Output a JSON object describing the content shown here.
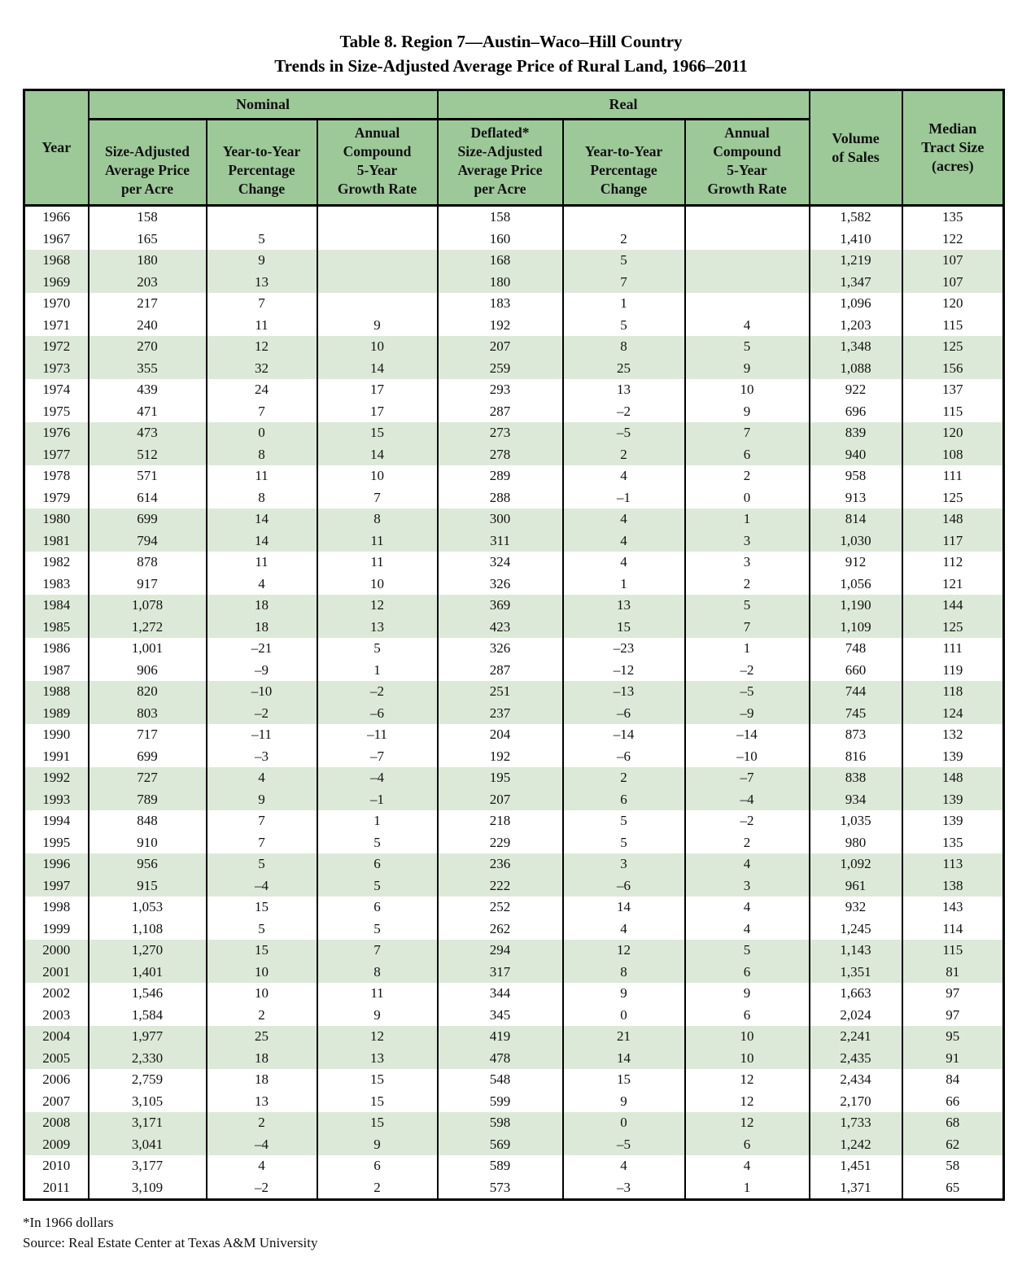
{
  "title": {
    "line1": "Table 8. Region 7—Austin–Waco–Hill Country",
    "line2": "Trends in Size-Adjusted Average Price of Rural Land, 1966–2011"
  },
  "table": {
    "group_headers": [
      {
        "label": "Nominal"
      },
      {
        "label": "Real"
      }
    ],
    "columns": [
      {
        "label": "Year"
      },
      {
        "label": "Size-Adjusted\nAverage Price\nper Acre"
      },
      {
        "label": "Year-to-Year\nPercentage\nChange"
      },
      {
        "label": "Annual\nCompound\n5-Year\nGrowth Rate"
      },
      {
        "label": "Deflated*\nSize-Adjusted\nAverage Price\nper Acre"
      },
      {
        "label": "Year-to-Year\nPercentage\nChange"
      },
      {
        "label": "Annual\nCompound\n5-Year\nGrowth Rate"
      },
      {
        "label": "Volume\nof Sales"
      },
      {
        "label": "Median\nTract Size\n(acres)"
      }
    ],
    "rows": [
      [
        "1966",
        "158",
        "",
        "",
        "158",
        "",
        "",
        "1,582",
        "135"
      ],
      [
        "1967",
        "165",
        "5",
        "",
        "160",
        "2",
        "",
        "1,410",
        "122"
      ],
      [
        "1968",
        "180",
        "9",
        "",
        "168",
        "5",
        "",
        "1,219",
        "107"
      ],
      [
        "1969",
        "203",
        "13",
        "",
        "180",
        "7",
        "",
        "1,347",
        "107"
      ],
      [
        "1970",
        "217",
        "7",
        "",
        "183",
        "1",
        "",
        "1,096",
        "120"
      ],
      [
        "1971",
        "240",
        "11",
        "9",
        "192",
        "5",
        "4",
        "1,203",
        "115"
      ],
      [
        "1972",
        "270",
        "12",
        "10",
        "207",
        "8",
        "5",
        "1,348",
        "125"
      ],
      [
        "1973",
        "355",
        "32",
        "14",
        "259",
        "25",
        "9",
        "1,088",
        "156"
      ],
      [
        "1974",
        "439",
        "24",
        "17",
        "293",
        "13",
        "10",
        "922",
        "137"
      ],
      [
        "1975",
        "471",
        "7",
        "17",
        "287",
        "–2",
        "9",
        "696",
        "115"
      ],
      [
        "1976",
        "473",
        "0",
        "15",
        "273",
        "–5",
        "7",
        "839",
        "120"
      ],
      [
        "1977",
        "512",
        "8",
        "14",
        "278",
        "2",
        "6",
        "940",
        "108"
      ],
      [
        "1978",
        "571",
        "11",
        "10",
        "289",
        "4",
        "2",
        "958",
        "111"
      ],
      [
        "1979",
        "614",
        "8",
        "7",
        "288",
        "–1",
        "0",
        "913",
        "125"
      ],
      [
        "1980",
        "699",
        "14",
        "8",
        "300",
        "4",
        "1",
        "814",
        "148"
      ],
      [
        "1981",
        "794",
        "14",
        "11",
        "311",
        "4",
        "3",
        "1,030",
        "117"
      ],
      [
        "1982",
        "878",
        "11",
        "11",
        "324",
        "4",
        "3",
        "912",
        "112"
      ],
      [
        "1983",
        "917",
        "4",
        "10",
        "326",
        "1",
        "2",
        "1,056",
        "121"
      ],
      [
        "1984",
        "1,078",
        "18",
        "12",
        "369",
        "13",
        "5",
        "1,190",
        "144"
      ],
      [
        "1985",
        "1,272",
        "18",
        "13",
        "423",
        "15",
        "7",
        "1,109",
        "125"
      ],
      [
        "1986",
        "1,001",
        "–21",
        "5",
        "326",
        "–23",
        "1",
        "748",
        "111"
      ],
      [
        "1987",
        "906",
        "–9",
        "1",
        "287",
        "–12",
        "–2",
        "660",
        "119"
      ],
      [
        "1988",
        "820",
        "–10",
        "–2",
        "251",
        "–13",
        "–5",
        "744",
        "118"
      ],
      [
        "1989",
        "803",
        "–2",
        "–6",
        "237",
        "–6",
        "–9",
        "745",
        "124"
      ],
      [
        "1990",
        "717",
        "–11",
        "–11",
        "204",
        "–14",
        "–14",
        "873",
        "132"
      ],
      [
        "1991",
        "699",
        "–3",
        "–7",
        "192",
        "–6",
        "–10",
        "816",
        "139"
      ],
      [
        "1992",
        "727",
        "4",
        "–4",
        "195",
        "2",
        "–7",
        "838",
        "148"
      ],
      [
        "1993",
        "789",
        "9",
        "–1",
        "207",
        "6",
        "–4",
        "934",
        "139"
      ],
      [
        "1994",
        "848",
        "7",
        "1",
        "218",
        "5",
        "–2",
        "1,035",
        "139"
      ],
      [
        "1995",
        "910",
        "7",
        "5",
        "229",
        "5",
        "2",
        "980",
        "135"
      ],
      [
        "1996",
        "956",
        "5",
        "6",
        "236",
        "3",
        "4",
        "1,092",
        "113"
      ],
      [
        "1997",
        "915",
        "–4",
        "5",
        "222",
        "–6",
        "3",
        "961",
        "138"
      ],
      [
        "1998",
        "1,053",
        "15",
        "6",
        "252",
        "14",
        "4",
        "932",
        "143"
      ],
      [
        "1999",
        "1,108",
        "5",
        "5",
        "262",
        "4",
        "4",
        "1,245",
        "114"
      ],
      [
        "2000",
        "1,270",
        "15",
        "7",
        "294",
        "12",
        "5",
        "1,143",
        "115"
      ],
      [
        "2001",
        "1,401",
        "10",
        "8",
        "317",
        "8",
        "6",
        "1,351",
        "81"
      ],
      [
        "2002",
        "1,546",
        "10",
        "11",
        "344",
        "9",
        "9",
        "1,663",
        "97"
      ],
      [
        "2003",
        "1,584",
        "2",
        "9",
        "345",
        "0",
        "6",
        "2,024",
        "97"
      ],
      [
        "2004",
        "1,977",
        "25",
        "12",
        "419",
        "21",
        "10",
        "2,241",
        "95"
      ],
      [
        "2005",
        "2,330",
        "18",
        "13",
        "478",
        "14",
        "10",
        "2,435",
        "91"
      ],
      [
        "2006",
        "2,759",
        "18",
        "15",
        "548",
        "15",
        "12",
        "2,434",
        "84"
      ],
      [
        "2007",
        "3,105",
        "13",
        "15",
        "599",
        "9",
        "12",
        "2,170",
        "66"
      ],
      [
        "2008",
        "3,171",
        "2",
        "15",
        "598",
        "0",
        "12",
        "1,733",
        "68"
      ],
      [
        "2009",
        "3,041",
        "–4",
        "9",
        "569",
        "–5",
        "6",
        "1,242",
        "62"
      ],
      [
        "2010",
        "3,177",
        "4",
        "6",
        "589",
        "4",
        "4",
        "1,451",
        "58"
      ],
      [
        "2011",
        "3,109",
        "–2",
        "2",
        "573",
        "–3",
        "1",
        "1,371",
        "65"
      ]
    ]
  },
  "footnotes": {
    "deflator_note": "*In 1966 dollars",
    "source": "Source: Real Estate Center at Texas A&M University"
  },
  "colors": {
    "header_green": "#9dc999",
    "band_green": "#dde9d8",
    "border": "#000000",
    "text": "#111111"
  }
}
